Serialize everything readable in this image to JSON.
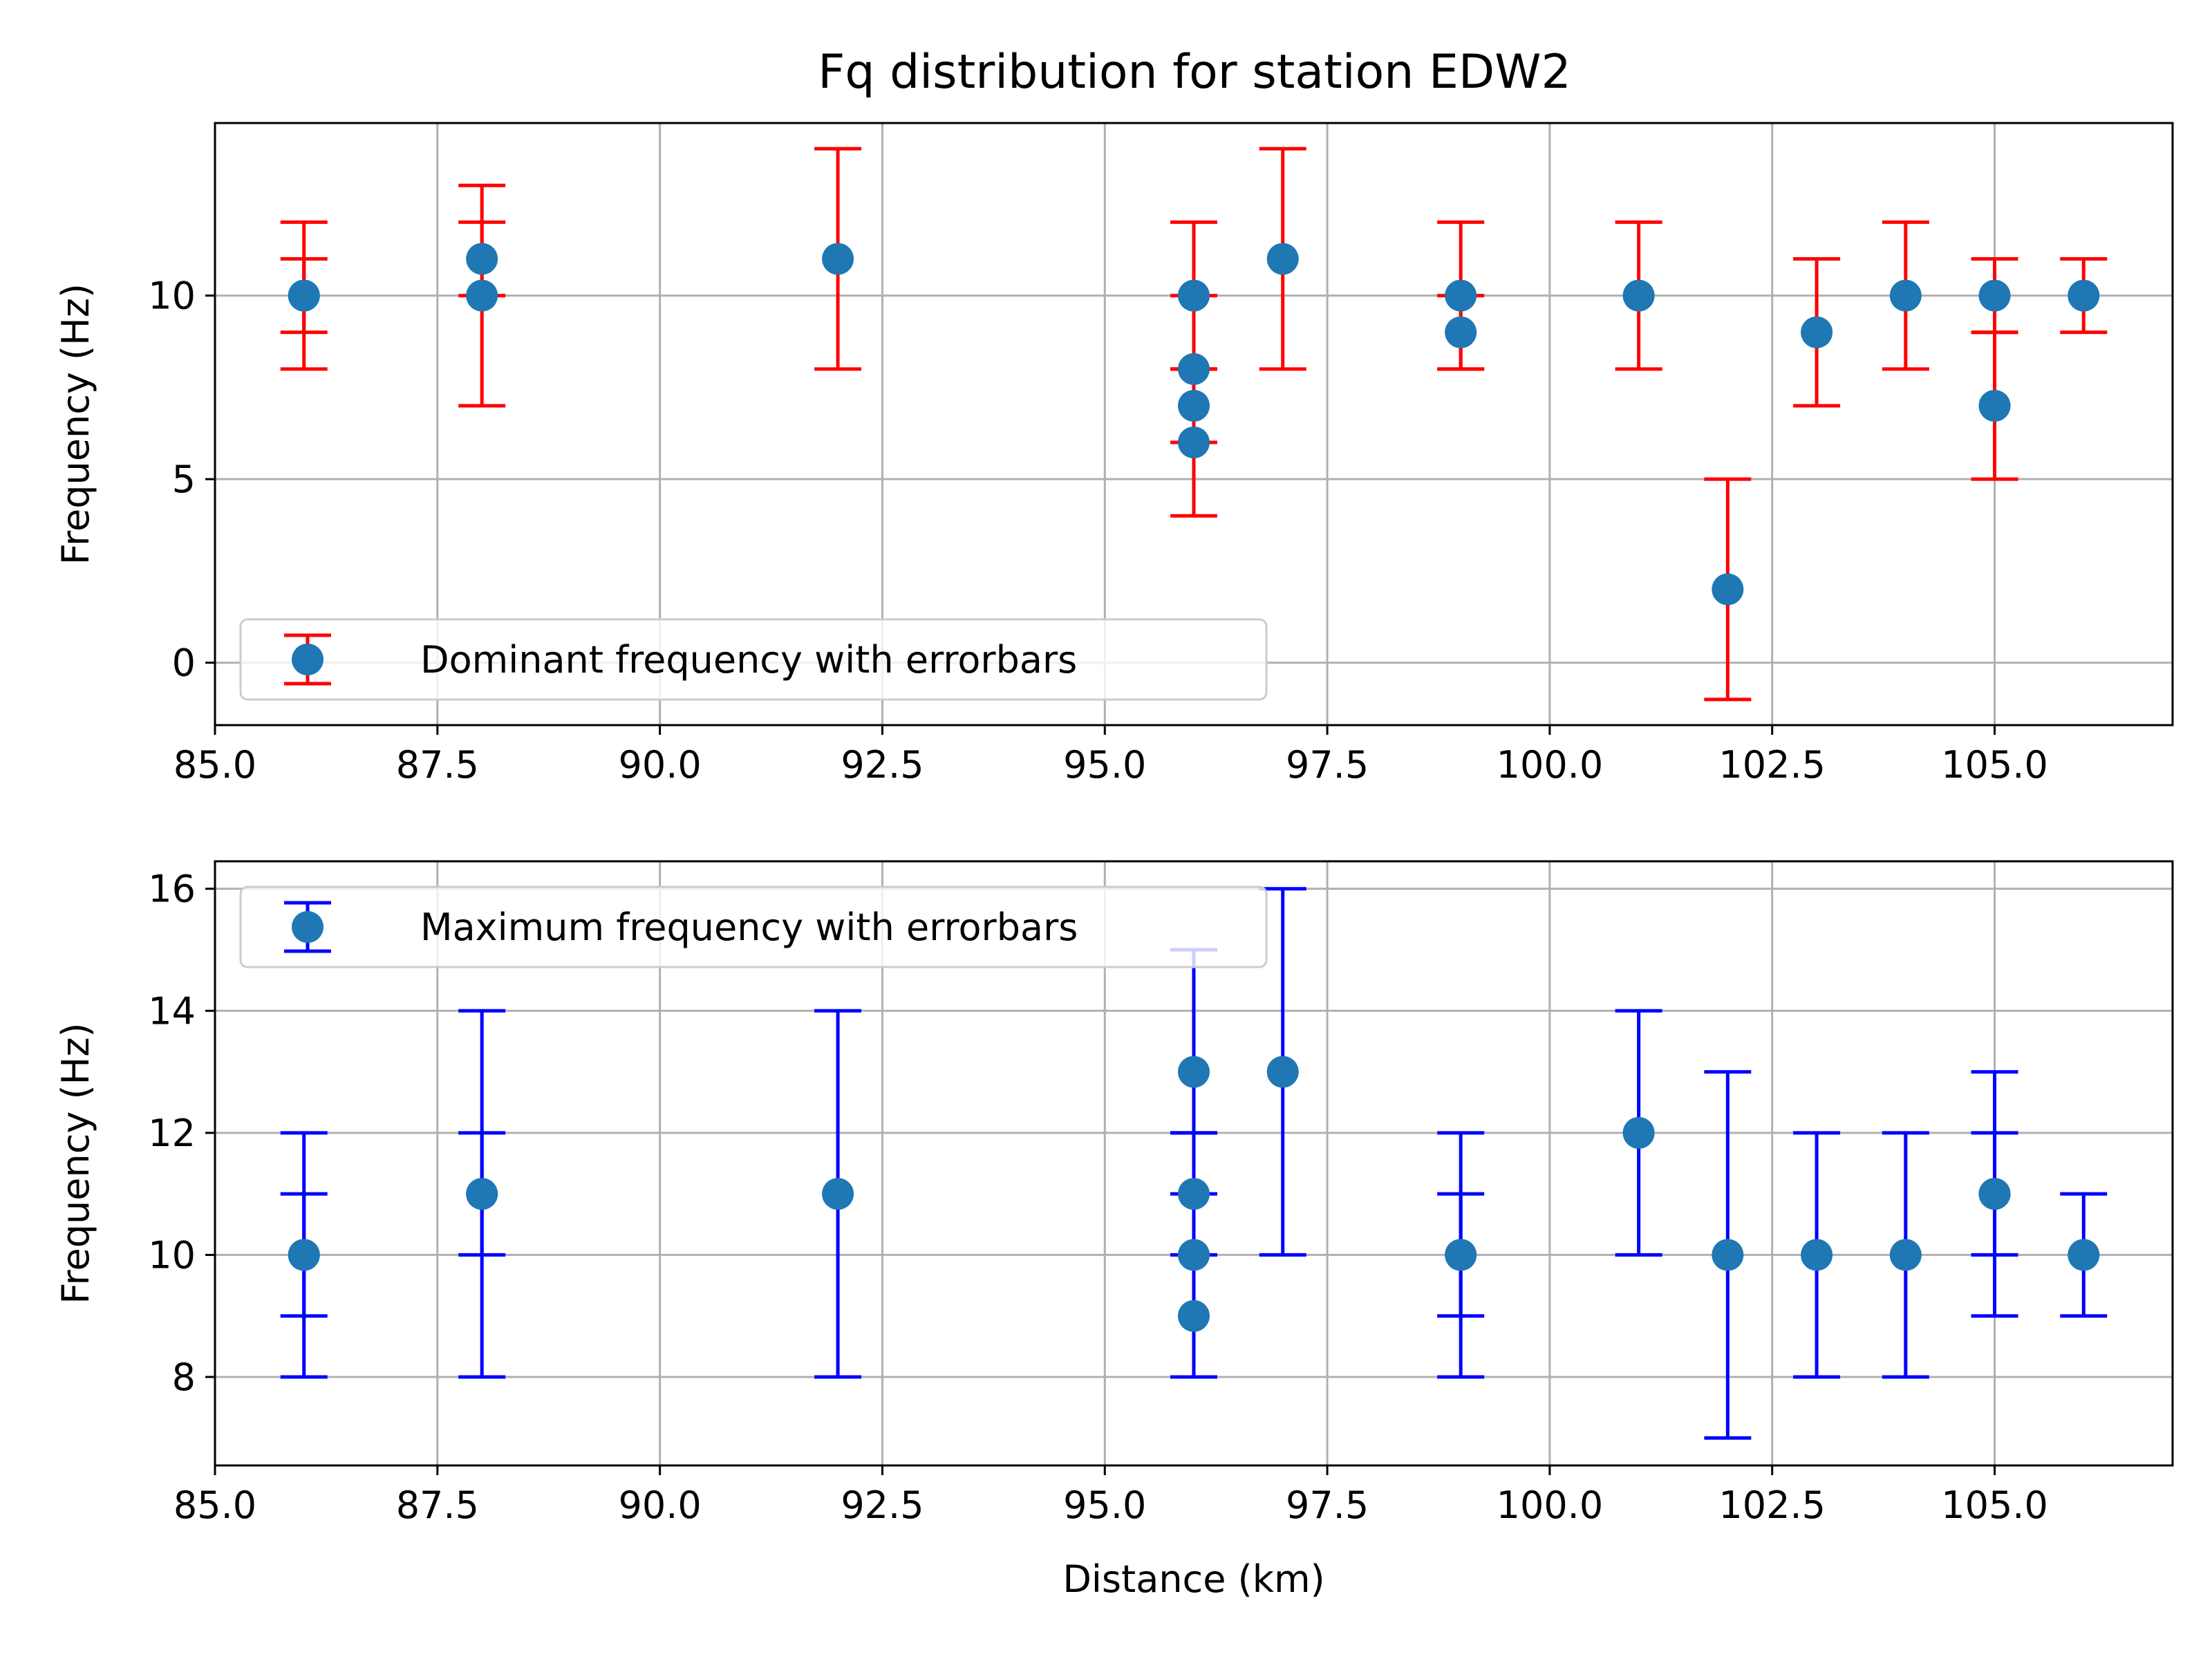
{
  "figure": {
    "title": "Fq distribution for station EDW2"
  },
  "colors": {
    "marker": "#1f77b4",
    "dominant_errorbar": "#ff0000",
    "maximum_errorbar": "#0000ff",
    "grid": "#b0b0b0",
    "axes": "#000000",
    "legend_border": "#cccccc"
  },
  "chart_data": [
    {
      "type": "scatter",
      "id": "dominant",
      "title": "Fq distribution for station EDW2",
      "xlabel": "",
      "ylabel": "Frequency (Hz)",
      "xlim": [
        85.0,
        107.0
      ],
      "ylim": [
        -1.7,
        14.7
      ],
      "xticks": [
        85.0,
        87.5,
        90.0,
        92.5,
        95.0,
        97.5,
        100.0,
        102.5,
        105.0
      ],
      "xtick_labels": [
        "85.0",
        "87.5",
        "90.0",
        "92.5",
        "95.0",
        "97.5",
        "100.0",
        "102.5",
        "105.0"
      ],
      "yticks": [
        0,
        5,
        10
      ],
      "ytick_labels": [
        "0",
        "5",
        "10"
      ],
      "grid": true,
      "legend": {
        "position": "lower-left",
        "label": "Dominant frequency with errorbars"
      },
      "errorbar_color": "#ff0000",
      "points": [
        {
          "x": 86,
          "y": 10,
          "yerr": 1
        },
        {
          "x": 86,
          "y": 10,
          "yerr": 2
        },
        {
          "x": 88,
          "y": 11,
          "yerr": 1
        },
        {
          "x": 88,
          "y": 10,
          "yerr": 3
        },
        {
          "x": 92,
          "y": 11,
          "yerr": 3
        },
        {
          "x": 96,
          "y": 10,
          "yerr": 2
        },
        {
          "x": 96,
          "y": 8,
          "yerr": 2
        },
        {
          "x": 96,
          "y": 7,
          "yerr": 1
        },
        {
          "x": 96,
          "y": 6,
          "yerr": 2
        },
        {
          "x": 97,
          "y": 11,
          "yerr": 3
        },
        {
          "x": 99,
          "y": 10,
          "yerr": 2
        },
        {
          "x": 99,
          "y": 9,
          "yerr": 1
        },
        {
          "x": 101,
          "y": 10,
          "yerr": 2
        },
        {
          "x": 102,
          "y": 2,
          "yerr": 3
        },
        {
          "x": 103,
          "y": 9,
          "yerr": 2
        },
        {
          "x": 104,
          "y": 10,
          "yerr": 2
        },
        {
          "x": 105,
          "y": 10,
          "yerr": 1
        },
        {
          "x": 105,
          "y": 7,
          "yerr": 2
        },
        {
          "x": 106,
          "y": 10,
          "yerr": 1
        }
      ]
    },
    {
      "type": "scatter",
      "id": "maximum",
      "title": "",
      "xlabel": "Distance (km)",
      "ylabel": "Frequency (Hz)",
      "xlim": [
        85.0,
        107.0
      ],
      "ylim": [
        6.55,
        16.45
      ],
      "xticks": [
        85.0,
        87.5,
        90.0,
        92.5,
        95.0,
        97.5,
        100.0,
        102.5,
        105.0
      ],
      "xtick_labels": [
        "85.0",
        "87.5",
        "90.0",
        "92.5",
        "95.0",
        "97.5",
        "100.0",
        "102.5",
        "105.0"
      ],
      "yticks": [
        8,
        10,
        12,
        14,
        16
      ],
      "ytick_labels": [
        "8",
        "10",
        "12",
        "14",
        "16"
      ],
      "grid": true,
      "legend": {
        "position": "upper-left",
        "label": "Maximum frequency with errorbars"
      },
      "errorbar_color": "#0000ff",
      "points": [
        {
          "x": 86,
          "y": 10,
          "yerr": 1
        },
        {
          "x": 86,
          "y": 10,
          "yerr": 2
        },
        {
          "x": 88,
          "y": 11,
          "yerr": 1
        },
        {
          "x": 88,
          "y": 11,
          "yerr": 3
        },
        {
          "x": 92,
          "y": 11,
          "yerr": 3
        },
        {
          "x": 96,
          "y": 13,
          "yerr": 2
        },
        {
          "x": 96,
          "y": 11,
          "yerr": 1
        },
        {
          "x": 96,
          "y": 10,
          "yerr": 2
        },
        {
          "x": 96,
          "y": 9,
          "yerr": 0
        },
        {
          "x": 97,
          "y": 13,
          "yerr": 3
        },
        {
          "x": 99,
          "y": 10,
          "yerr": 1
        },
        {
          "x": 99,
          "y": 10,
          "yerr": 2
        },
        {
          "x": 101,
          "y": 12,
          "yerr": 2
        },
        {
          "x": 102,
          "y": 10,
          "yerr": 3
        },
        {
          "x": 103,
          "y": 10,
          "yerr": 2
        },
        {
          "x": 104,
          "y": 10,
          "yerr": 2
        },
        {
          "x": 105,
          "y": 11,
          "yerr": 1
        },
        {
          "x": 105,
          "y": 11,
          "yerr": 2
        },
        {
          "x": 106,
          "y": 10,
          "yerr": 1
        }
      ]
    }
  ]
}
